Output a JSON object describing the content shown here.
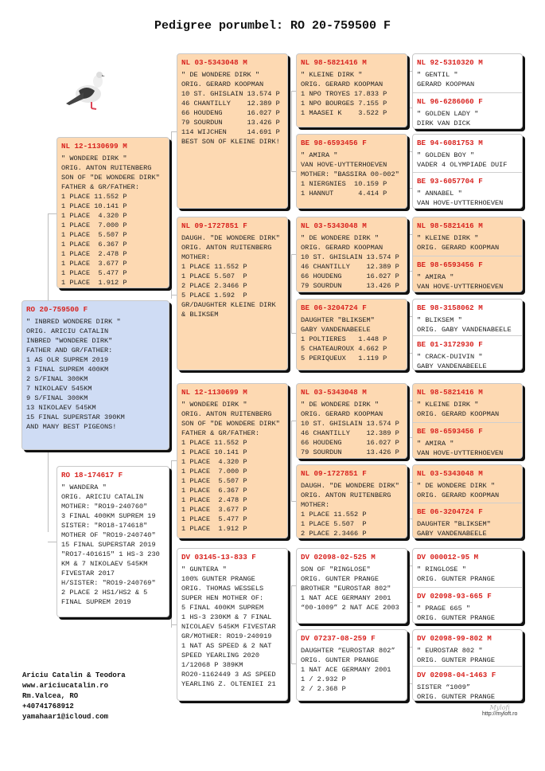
{
  "title": "Pedigree porumbel: RO 20-759500 F",
  "colors": {
    "ring": "#d8231f",
    "highlight": "#fdd9b2",
    "subject": "#cfdcf4",
    "plain": "#ffffff"
  },
  "image": {
    "icon": "pigeon-photo"
  },
  "cards": [
    {
      "gen": 1,
      "color": "#cfdcf4",
      "entries": [
        {
          "ring": "RO 20-759500 F",
          "lines": [
            "\" INBRED WONDERE DIRK \"",
            "ORIG. ARICIU CATALIN",
            "INBRED \"WONDERE DIRK\"",
            "FATHER AND GR/FATHER:",
            "1 AS OLR SUPREM 2019",
            "3 FINAL SUPREM 400KM",
            "2 S/FINAL 300KM",
            "7 NIKOLAEV 545KM",
            "9 S/FINAL 300KM",
            "13 NIKOLAEV 545KM",
            "15 FINAL SUPERSTAR 390KM",
            "AND MANY BEST PIGEONS!"
          ]
        }
      ]
    },
    {
      "gen": 2,
      "color": "#fdd9b2",
      "entries": [
        {
          "ring": "NL 12-1130699 M",
          "lines": [
            "\" WONDERE DIRK \"",
            "ORIG. ANTON RUITENBERG",
            "SON OF \"DE WONDERE DIRK\"",
            "FATHER & GR/FATHER:",
            "1 PLACE 11.552 P",
            "1 PLACE 10.141 P",
            "1 PLACE  4.320 P",
            "1 PLACE  7.000 P",
            "1 PLACE  5.507 P",
            "1 PLACE  6.367 P",
            "1 PLACE  2.478 P",
            "1 PLACE  3.677 P",
            "1 PLACE  5.477 P",
            "1 PLACE  1.912 P"
          ]
        }
      ]
    },
    {
      "gen": 2,
      "color": "#ffffff",
      "entries": [
        {
          "ring": "RO 18-174617 F",
          "lines": [
            "\" WANDERA \"",
            "ORIG. ARICIU CATALIN",
            "MOTHER: \"RO19-240760\"",
            "3 FINAL 400KM SUPREM 19",
            "SISTER: \"RO18-174618\"",
            "MOTHER OF \"RO19-240740\"",
            "15 FINAL SUPERSTAR 2019",
            "\"RO17-401615\" 1 HS-3 230",
            "KM & 7 NIKOLAEV 545KM",
            "FIVESTAR 2017",
            "H/SISTER: \"RO19-240769\"",
            "2 PLACE 2 HS1/HS2 & 5",
            "FINAL SUPREM 2019"
          ]
        }
      ]
    },
    {
      "gen": 3,
      "color": "#fdd9b2",
      "entries": [
        {
          "ring": "NL 03-5343048 M",
          "lines": [
            "\" DE WONDERE DIRK \"",
            "ORIG. GERARD KOOPMAN",
            "10 ST. GHISLAIN 13.574 P",
            "46 CHANTILLY    12.389 P",
            "66 HOUDENG      16.027 P",
            "79 SOURDUN      13.426 P",
            "114 WIJCHEN     14.691 P",
            "BEST SON OF KLEINE DIRK!"
          ]
        }
      ]
    },
    {
      "gen": 3,
      "color": "#fdd9b2",
      "entries": [
        {
          "ring": "NL 09-1727851 F",
          "lines": [
            "DAUGH. \"DE WONDERE DIRK\"",
            "ORIG. ANTON RUITENBERG",
            "MOTHER:",
            "1 PLACE 11.552 P",
            "1 PLACE 5.507  P",
            "2 PLACE 2.3466 P",
            "5 PLACE 1.592  P",
            "GR/DAUGHTER KLEINE DIRK",
            "& BLIKSEM"
          ]
        }
      ]
    },
    {
      "gen": 3,
      "color": "#fdd9b2",
      "entries": [
        {
          "ring": "NL 12-1130699 M",
          "lines": [
            "\" WONDERE DIRK \"",
            "ORIG. ANTON RUITENBERG",
            "SON OF \"DE WONDERE DIRK\"",
            "FATHER & GR/FATHER:",
            "1 PLACE 11.552 P",
            "1 PLACE 10.141 P",
            "1 PLACE  4.320 P",
            "1 PLACE  7.000 P",
            "1 PLACE  5.507 P",
            "1 PLACE  6.367 P",
            "1 PLACE  2.478 P",
            "1 PLACE  3.677 P",
            "1 PLACE  5.477 P",
            "1 PLACE  1.912 P"
          ]
        }
      ]
    },
    {
      "gen": 3,
      "color": "#ffffff",
      "entries": [
        {
          "ring": "DV 03145-13-833 F",
          "lines": [
            "\" GUNTERA \"",
            "100% GUNTER PRANGE",
            "ORIG. THOMAS WESSELS",
            "SUPER HEN MOTHER OF:",
            "5 FINAL 400KM SUPREM",
            "1 HS-3 230KM & 7 FINAL",
            "NICOLAEV 545KM FIVESTAR",
            "GR/MOTHER: RO19-240919",
            "1 NAT AS SPEED & 2 NAT",
            "SPEED YEARLING 2020",
            "1/12068 P 389KM",
            "RO20-1162449 3 AS SPEED",
            "YEARLING Z. OLTENIEI 21"
          ]
        }
      ]
    },
    {
      "gen": 4,
      "color": "#fdd9b2",
      "entries": [
        {
          "ring": "NL 98-5821416 M",
          "lines": [
            "\" KLEINE DIRK \"",
            "ORIG. GERARD KOOPMAN",
            "1 NPO TROYES 17.833 P",
            "1 NPO BOURGES 7.155 P",
            "1 MAASEI K    3.522 P"
          ]
        }
      ]
    },
    {
      "gen": 4,
      "color": "#fdd9b2",
      "entries": [
        {
          "ring": "BE 98-6593456 F",
          "lines": [
            "\" AMIRA \"",
            "VAN HOVE-UYTTERHOEVEN",
            "MOTHER: \"BASSIRA 00-002\"",
            "1 NIERGNIES  10.159 P",
            "1 HANNUT      4.414 P"
          ]
        }
      ]
    },
    {
      "gen": 4,
      "color": "#fdd9b2",
      "entries": [
        {
          "ring": "NL 03-5343048 M",
          "lines": [
            "\" DE WONDERE DIRK \"",
            "ORIG. GERARD KOOPMAN",
            "10 ST. GHISLAIN 13.574 P",
            "46 CHANTILLY    12.389 P",
            "66 HOUDENG      16.027 P",
            "79 SOURDUN      13.426 P"
          ]
        }
      ]
    },
    {
      "gen": 4,
      "color": "#fdd9b2",
      "entries": [
        {
          "ring": "BE 06-3204724 F",
          "lines": [
            "DAUGHTER \"BLIKSEM\"",
            "GABY VANDENABEELE",
            "1 POLTIERES   1.448 P",
            "5 CHATEAUROUX 4.662 P",
            "5 PERIQUEUX   1.119 P"
          ]
        }
      ]
    },
    {
      "gen": 4,
      "color": "#fdd9b2",
      "entries": [
        {
          "ring": "NL 03-5343048 M",
          "lines": [
            "\" DE WONDERE DIRK \"",
            "ORIG. GERARD KOOPMAN",
            "10 ST. GHISLAIN 13.574 P",
            "46 CHANTILLY    12.389 P",
            "66 HOUDENG      16.027 P",
            "79 SOURDUN      13.426 P"
          ]
        }
      ]
    },
    {
      "gen": 4,
      "color": "#fdd9b2",
      "entries": [
        {
          "ring": "NL 09-1727851 F",
          "lines": [
            "DAUGH. \"DE WONDERE DIRK\"",
            "ORIG. ANTON RUITENBERG",
            "MOTHER:",
            "1 PLACE 11.552 P",
            "1 PLACE 5.507  P",
            "2 PLACE 2.3466 P"
          ]
        }
      ]
    },
    {
      "gen": 4,
      "color": "#ffffff",
      "entries": [
        {
          "ring": "DV 02098-02-525 M",
          "lines": [
            "SON OF \"RINGLOSE\"",
            "ORIG. GUNTER PRANGE",
            "BROTHER \"EUROSTAR 802\"",
            "1 NAT ACE GERMANY 2001",
            "“00-1009” 2 NAT ACE 2003"
          ]
        }
      ]
    },
    {
      "gen": 4,
      "color": "#ffffff",
      "entries": [
        {
          "ring": "DV 07237-08-259 F",
          "lines": [
            "DAUGHTER “EUROSTAR 802”",
            "ORIG. GUNTER PRANGE",
            "1 NAT ACE GERMANY 2001",
            "1 / 2.932 P",
            "2 / 2.368 P"
          ]
        }
      ]
    },
    {
      "gen": 5,
      "color": "#ffffff",
      "entries": [
        {
          "ring": "NL 92-5310320 M",
          "lines": [
            "\" GENTIL \"",
            "GERARD KOOPMAN"
          ]
        },
        {
          "ring": "NL 96-6286060 F",
          "lines": [
            "\" GOLDEN LADY \"",
            "DIRK VAN DICK"
          ]
        }
      ]
    },
    {
      "gen": 5,
      "color": "#ffffff",
      "entries": [
        {
          "ring": "BE 94-6081753 M",
          "lines": [
            "\" GOLDEN BOY \"",
            "VADER 4 OLYMPIADE DUIF"
          ]
        },
        {
          "ring": "BE 93-6057704 F",
          "lines": [
            "\" ANNABEL \"",
            "VAN HOVE-UYTTERHOEVEN"
          ]
        }
      ]
    },
    {
      "gen": 5,
      "color": "#fdd9b2",
      "entries": [
        {
          "ring": "NL 98-5821416 M",
          "lines": [
            "\" KLEINE DIRK \"",
            "ORIG. GERARD KOOPMAN"
          ]
        },
        {
          "ring": "BE 98-6593456 F",
          "lines": [
            "\" AMIRA \"",
            "VAN HOVE-UYTTERHOEVEN"
          ]
        }
      ]
    },
    {
      "gen": 5,
      "color": "#ffffff",
      "entries": [
        {
          "ring": "BE 98-3158062 M",
          "lines": [
            "\" BLIKSEM \"",
            "ORIG. GABY VANDENABEELE"
          ]
        },
        {
          "ring": "BE 01-3172930 F",
          "lines": [
            "\" CRACK-DUIVIN \"",
            "GABY VANDENABEELE"
          ]
        }
      ]
    },
    {
      "gen": 5,
      "color": "#fdd9b2",
      "entries": [
        {
          "ring": "NL 98-5821416 M",
          "lines": [
            "\" KLEINE DIRK \"",
            "ORIG. GERARD KOOPMAN"
          ]
        },
        {
          "ring": "BE 98-6593456 F",
          "lines": [
            "\" AMIRA \"",
            "VAN HOVE-UYTTERHOEVEN"
          ]
        }
      ]
    },
    {
      "gen": 5,
      "color": "#fdd9b2",
      "entries": [
        {
          "ring": "NL 03-5343048 M",
          "lines": [
            "\" DE WONDERE DIRK \"",
            "ORIG. GERARD KOOPMAN"
          ]
        },
        {
          "ring": "BE 06-3204724 F",
          "lines": [
            "DAUGHTER \"BLIKSEM\"",
            "GABY VANDENABEELE"
          ]
        }
      ]
    },
    {
      "gen": 5,
      "color": "#ffffff",
      "entries": [
        {
          "ring": "DV 000012-95 M",
          "lines": [
            "\" RINGLOSE \"",
            "ORIG. GUNTER PRANGE"
          ]
        },
        {
          "ring": "DV 02098-93-665 F",
          "lines": [
            "\" PRAGE 665 \"",
            "ORIG. GUNTER PRANGE"
          ]
        }
      ]
    },
    {
      "gen": 5,
      "color": "#ffffff",
      "entries": [
        {
          "ring": "DV 02098-99-802 M",
          "lines": [
            "\" EUROSTAR 802 \"",
            "ORIG. GUNTER PRANGE"
          ]
        },
        {
          "ring": "DV 02098-04-1463 F",
          "lines": [
            "SISTER “1009”",
            "ORIG. GUNTER PRANGE"
          ]
        }
      ]
    }
  ],
  "footer": {
    "name": "Ariciu Catalin & Teodora",
    "website": "www.ariciucatalin.ro",
    "location": "Rm.Valcea, RO",
    "phone": "+40741768912",
    "email": "yamahaar1@icloud.com"
  },
  "logo": {
    "signature": "Mylofi",
    "url": "http://myloft.ro"
  }
}
